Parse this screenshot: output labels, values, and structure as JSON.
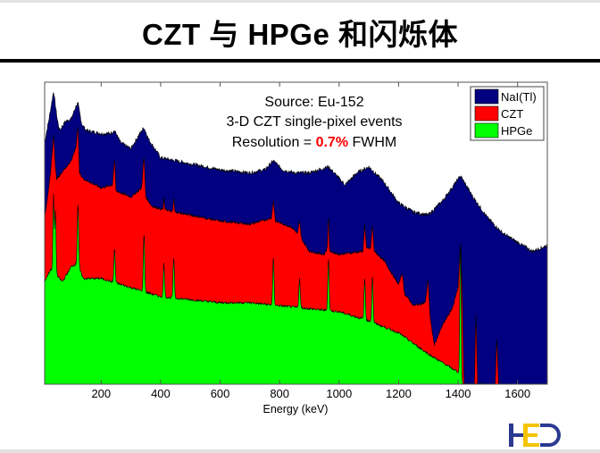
{
  "slide": {
    "title": "CZT 与 HPGe 和闪烁体",
    "logo_text": "HED",
    "colors": {
      "rule": "#000000",
      "logo_blue": "#2b3990",
      "logo_yellow": "#f5c400"
    }
  },
  "chart_data": {
    "type": "area",
    "xlabel": "Energy (keV)",
    "ylabel": "",
    "xlim": [
      10,
      1700
    ],
    "ylim": [
      0,
      100
    ],
    "y_units": "relative counts (unlabeled axis)",
    "x_ticks": [
      200,
      400,
      600,
      800,
      1000,
      1200,
      1400,
      1600
    ],
    "x_tick_labels": [
      "200",
      "400",
      "600",
      "800",
      "1000",
      "1200",
      "1400",
      "1600"
    ],
    "grid": false,
    "legend_position": "top-right",
    "annotation": {
      "line1": "Source: Eu-152",
      "line2": "3-D CZT single-pixel events",
      "line3_prefix": "Resolution = ",
      "line3_value": "0.7%",
      "line3_suffix": " FWHM",
      "value_color": "#ff0000"
    },
    "series": [
      {
        "name": "NaI(Tl)",
        "color": "#000080",
        "points": [
          [
            10,
            80
          ],
          [
            25,
            88
          ],
          [
            40,
            97
          ],
          [
            52,
            88
          ],
          [
            60,
            84
          ],
          [
            80,
            87
          ],
          [
            100,
            88
          ],
          [
            115,
            92
          ],
          [
            122,
            93
          ],
          [
            135,
            86
          ],
          [
            150,
            84
          ],
          [
            200,
            83
          ],
          [
            230,
            83
          ],
          [
            245,
            84
          ],
          [
            265,
            80
          ],
          [
            300,
            78
          ],
          [
            330,
            83
          ],
          [
            344,
            85
          ],
          [
            360,
            81
          ],
          [
            400,
            75
          ],
          [
            450,
            74
          ],
          [
            500,
            73
          ],
          [
            600,
            71
          ],
          [
            700,
            70
          ],
          [
            750,
            71
          ],
          [
            779,
            74
          ],
          [
            810,
            71
          ],
          [
            850,
            70
          ],
          [
            900,
            70
          ],
          [
            964,
            72
          ],
          [
            1020,
            66
          ],
          [
            1060,
            70
          ],
          [
            1100,
            72
          ],
          [
            1150,
            67
          ],
          [
            1200,
            60
          ],
          [
            1250,
            57
          ],
          [
            1300,
            56
          ],
          [
            1350,
            61
          ],
          [
            1408,
            69
          ],
          [
            1450,
            62
          ],
          [
            1500,
            55
          ],
          [
            1550,
            50
          ],
          [
            1600,
            47
          ],
          [
            1650,
            44
          ],
          [
            1700,
            46
          ]
        ]
      },
      {
        "name": "CZT",
        "color": "#ff0000",
        "points": [
          [
            10,
            55
          ],
          [
            30,
            70
          ],
          [
            38,
            80
          ],
          [
            40,
            83
          ],
          [
            46,
            72
          ],
          [
            50,
            68
          ],
          [
            100,
            74
          ],
          [
            116,
            79
          ],
          [
            122,
            86
          ],
          [
            127,
            70
          ],
          [
            140,
            68
          ],
          [
            200,
            65
          ],
          [
            238,
            66
          ],
          [
            245,
            75
          ],
          [
            250,
            64
          ],
          [
            300,
            62
          ],
          [
            336,
            65
          ],
          [
            344,
            76
          ],
          [
            350,
            62
          ],
          [
            370,
            59
          ],
          [
            400,
            58
          ],
          [
            408,
            58
          ],
          [
            411,
            62
          ],
          [
            414,
            58
          ],
          [
            440,
            57
          ],
          [
            444,
            62
          ],
          [
            448,
            57
          ],
          [
            500,
            56
          ],
          [
            600,
            54
          ],
          [
            700,
            53
          ],
          [
            772,
            55
          ],
          [
            779,
            61
          ],
          [
            786,
            54
          ],
          [
            840,
            52
          ],
          [
            860,
            50
          ],
          [
            867,
            54
          ],
          [
            874,
            48
          ],
          [
            900,
            44
          ],
          [
            950,
            43
          ],
          [
            960,
            45
          ],
          [
            964,
            57
          ],
          [
            968,
            44
          ],
          [
            1000,
            43
          ],
          [
            1080,
            44
          ],
          [
            1086,
            53
          ],
          [
            1092,
            45
          ],
          [
            1106,
            45
          ],
          [
            1112,
            53
          ],
          [
            1118,
            44
          ],
          [
            1150,
            41
          ],
          [
            1200,
            33
          ],
          [
            1212,
            37
          ],
          [
            1220,
            30
          ],
          [
            1250,
            26
          ],
          [
            1290,
            27
          ],
          [
            1299,
            35
          ],
          [
            1306,
            22
          ],
          [
            1320,
            13
          ],
          [
            1350,
            20
          ],
          [
            1380,
            25
          ],
          [
            1400,
            32
          ],
          [
            1408,
            48
          ],
          [
            1414,
            30
          ],
          [
            1420,
            0
          ],
          [
            1455,
            0
          ],
          [
            1460,
            24
          ],
          [
            1466,
            0
          ],
          [
            1525,
            0
          ],
          [
            1530,
            16
          ],
          [
            1536,
            0
          ],
          [
            1700,
            0
          ]
        ]
      },
      {
        "name": "HPGe",
        "color": "#00ff00",
        "points": [
          [
            10,
            34
          ],
          [
            30,
            38
          ],
          [
            50,
            36
          ],
          [
            70,
            34
          ],
          [
            100,
            39
          ],
          [
            120,
            40
          ],
          [
            140,
            35
          ],
          [
            200,
            35
          ],
          [
            300,
            32
          ],
          [
            400,
            29
          ],
          [
            500,
            28
          ],
          [
            600,
            27
          ],
          [
            700,
            27
          ],
          [
            800,
            26
          ],
          [
            900,
            25
          ],
          [
            1000,
            24
          ],
          [
            1100,
            21
          ],
          [
            1200,
            17
          ],
          [
            1300,
            10
          ],
          [
            1350,
            7
          ],
          [
            1400,
            4
          ],
          [
            1410,
            0
          ],
          [
            1700,
            0
          ]
        ],
        "peaks": [
          [
            40,
            63
          ],
          [
            46,
            58
          ],
          [
            122,
            60
          ],
          [
            245,
            45
          ],
          [
            344,
            50
          ],
          [
            411,
            40
          ],
          [
            444,
            42
          ],
          [
            779,
            42
          ],
          [
            867,
            35
          ],
          [
            964,
            42
          ],
          [
            1086,
            35
          ],
          [
            1112,
            36
          ],
          [
            1408,
            48
          ]
        ]
      }
    ]
  }
}
